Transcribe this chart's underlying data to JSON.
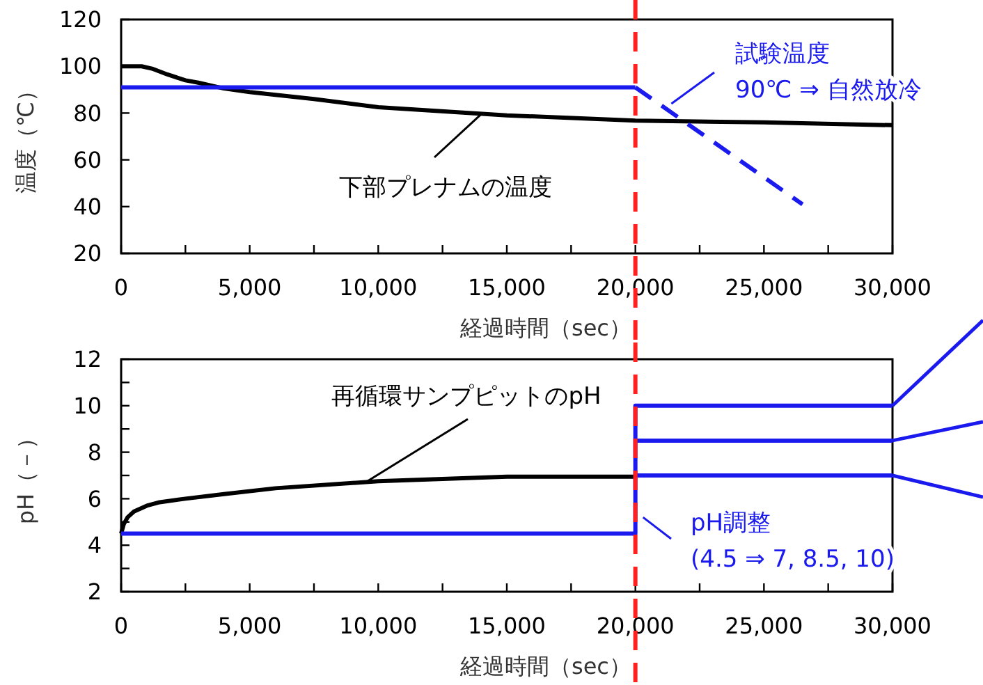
{
  "chart_data": [
    {
      "type": "line",
      "xlabel": "経過時間（sec）",
      "ylabel": "温度（℃）",
      "xlim": [
        0,
        30000
      ],
      "ylim": [
        20,
        120
      ],
      "xticks": [
        {
          "value": 0,
          "label": "0"
        },
        {
          "value": 2500,
          "label": null
        },
        {
          "value": 5000,
          "label": "5,000"
        },
        {
          "value": 7500,
          "label": null
        },
        {
          "value": 10000,
          "label": "10,000"
        },
        {
          "value": 12500,
          "label": null
        },
        {
          "value": 15000,
          "label": "15,000"
        },
        {
          "value": 17500,
          "label": null
        },
        {
          "value": 20000,
          "label": "20,000"
        },
        {
          "value": 22500,
          "label": null
        },
        {
          "value": 25000,
          "label": "25,000"
        },
        {
          "value": 27500,
          "label": null
        },
        {
          "value": 30000,
          "label": "30,000"
        }
      ],
      "yticks": [
        20,
        40,
        60,
        80,
        100,
        120
      ],
      "grid": false,
      "marker": "none",
      "series": [
        {
          "color": "#000000",
          "x": [
            0,
            800,
            1200,
            1800,
            2500,
            3000,
            4000,
            5000,
            7500,
            10000,
            15000,
            20000,
            25000,
            30000
          ],
          "values": [
            100,
            100,
            99,
            96.5,
            94,
            93,
            90.5,
            89,
            86,
            82.5,
            79,
            76.8,
            76,
            74.8
          ]
        },
        {
          "color": "#1a1aee",
          "x": [
            0,
            20000
          ],
          "values": [
            91,
            91
          ]
        },
        {
          "color": "#1a1aee",
          "x": [
            20000,
            26500
          ],
          "values": [
            91,
            41
          ],
          "line_style": "dashed"
        }
      ],
      "ref_lines": [
        {
          "axis": "x",
          "value": 20000,
          "color": "#ff2020",
          "line_style": "dashed"
        }
      ],
      "annotations": [
        {
          "text": "下部プレナムの温度",
          "x": 14000,
          "y": 79.5
        },
        {
          "text": "試験温度\n90℃ ⇒ 自然放冷",
          "x": 21400,
          "y": 84
        }
      ]
    },
    {
      "type": "line",
      "xlabel": "経過時間（sec）",
      "ylabel": "pH（－）",
      "xlim": [
        0,
        30000
      ],
      "ylim": [
        2,
        12
      ],
      "xticks": [
        {
          "value": 0,
          "label": "0"
        },
        {
          "value": 2500,
          "label": null
        },
        {
          "value": 5000,
          "label": "5,000"
        },
        {
          "value": 7500,
          "label": null
        },
        {
          "value": 10000,
          "label": "10,000"
        },
        {
          "value": 12500,
          "label": null
        },
        {
          "value": 15000,
          "label": "15,000"
        },
        {
          "value": 17500,
          "label": null
        },
        {
          "value": 20000,
          "label": "20,000"
        },
        {
          "value": 22500,
          "label": null
        },
        {
          "value": 25000,
          "label": "25,000"
        },
        {
          "value": 27500,
          "label": null
        },
        {
          "value": 30000,
          "label": "30,000"
        }
      ],
      "yticks": [
        2,
        {
          "value": 3,
          "label": null
        },
        4,
        {
          "value": 5,
          "label": null
        },
        6,
        {
          "value": 7,
          "label": null
        },
        8,
        {
          "value": 9,
          "label": null
        },
        10,
        {
          "value": 11,
          "label": null
        },
        12
      ],
      "grid": false,
      "marker": "none",
      "series": [
        {
          "color": "#000000",
          "x": [
            0,
            100,
            250,
            500,
            1000,
            1500,
            2500,
            4000,
            6000,
            10000,
            15000,
            20000
          ],
          "values": [
            4.5,
            4.9,
            5.2,
            5.45,
            5.7,
            5.85,
            6.0,
            6.2,
            6.45,
            6.75,
            6.95,
            6.95
          ]
        },
        {
          "color": "#1a1aee",
          "x": [
            0,
            20000,
            20000,
            30000
          ],
          "values": [
            4.5,
            4.5,
            10,
            10
          ]
        },
        {
          "color": "#1a1aee",
          "x": [
            20000,
            30000
          ],
          "values": [
            8.5,
            8.5
          ]
        },
        {
          "color": "#1a1aee",
          "x": [
            20000,
            30000
          ],
          "values": [
            7,
            7
          ]
        }
      ],
      "ref_lines": [
        {
          "axis": "x",
          "value": 20000,
          "color": "#ff2020",
          "line_style": "dashed"
        }
      ],
      "annotations": [
        {
          "text": "再循環サンプピットのpH",
          "x": 9500,
          "y": 6.7
        },
        {
          "text": "pH調整\n(4.5 ⇒ 7, 8.5, 10)",
          "x": 20300,
          "y": 5.2
        }
      ]
    }
  ]
}
